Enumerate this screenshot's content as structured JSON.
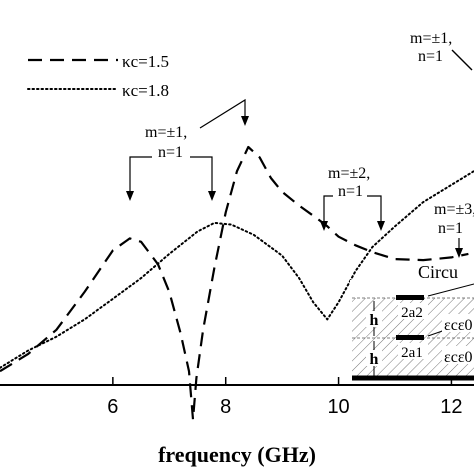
{
  "chart_data": {
    "type": "line",
    "xlabel": "frequency (GHz)",
    "ylabel": "",
    "xlim": [
      4.0,
      12.4
    ],
    "ylim": [
      0,
      1
    ],
    "x_ticks": [
      {
        "value": 6,
        "label": "6"
      },
      {
        "value": 8,
        "label": "8"
      },
      {
        "value": 10,
        "label": "10"
      },
      {
        "value": 12,
        "label": "12"
      }
    ],
    "legend": {
      "placement": "top-left",
      "entries": [
        {
          "series": 0,
          "label": "κc=1.5"
        },
        {
          "series": 1,
          "label": "κc=1.8"
        }
      ]
    },
    "series": [
      {
        "name": "κc=1.5",
        "style": "dashed",
        "color": "#000000",
        "points": [
          [
            4.0,
            0.04
          ],
          [
            4.5,
            0.09
          ],
          [
            5.0,
            0.16
          ],
          [
            5.5,
            0.27
          ],
          [
            6.0,
            0.39
          ],
          [
            6.3,
            0.425
          ],
          [
            6.5,
            0.415
          ],
          [
            6.8,
            0.35
          ],
          [
            7.0,
            0.27
          ],
          [
            7.2,
            0.15
          ],
          [
            7.35,
            0.04
          ],
          [
            7.42,
            -0.1
          ],
          [
            7.48,
            0.02
          ],
          [
            7.6,
            0.16
          ],
          [
            7.8,
            0.34
          ],
          [
            8.0,
            0.5
          ],
          [
            8.2,
            0.62
          ],
          [
            8.4,
            0.69
          ],
          [
            8.6,
            0.66
          ],
          [
            8.8,
            0.6
          ],
          [
            9.0,
            0.56
          ],
          [
            9.3,
            0.52
          ],
          [
            9.6,
            0.485
          ],
          [
            9.8,
            0.46
          ],
          [
            10.0,
            0.43
          ],
          [
            10.3,
            0.405
          ],
          [
            10.6,
            0.385
          ],
          [
            11.0,
            0.365
          ],
          [
            11.5,
            0.362
          ],
          [
            12.0,
            0.37
          ],
          [
            12.3,
            0.38
          ]
        ]
      },
      {
        "name": "κc=1.8",
        "style": "dotted",
        "color": "#000000",
        "points": [
          [
            4.0,
            0.05
          ],
          [
            4.5,
            0.1
          ],
          [
            5.0,
            0.14
          ],
          [
            5.5,
            0.19
          ],
          [
            6.0,
            0.25
          ],
          [
            6.5,
            0.31
          ],
          [
            7.0,
            0.38
          ],
          [
            7.5,
            0.445
          ],
          [
            7.8,
            0.47
          ],
          [
            8.1,
            0.465
          ],
          [
            8.5,
            0.435
          ],
          [
            9.0,
            0.375
          ],
          [
            9.3,
            0.31
          ],
          [
            9.55,
            0.24
          ],
          [
            9.8,
            0.19
          ],
          [
            10.0,
            0.24
          ],
          [
            10.3,
            0.33
          ],
          [
            10.6,
            0.4
          ],
          [
            11.0,
            0.46
          ],
          [
            11.5,
            0.53
          ],
          [
            12.0,
            0.58
          ],
          [
            12.4,
            0.62
          ]
        ]
      }
    ],
    "annotations": {
      "mode_labels": [
        {
          "lines": [
            "m=±1,",
            "n=1"
          ]
        },
        {
          "lines": [
            "m=±2,",
            "n=1"
          ]
        },
        {
          "lines": [
            "m=±3,",
            "n=1"
          ]
        },
        {
          "lines": [
            "m=±1,",
            "n=1"
          ]
        }
      ],
      "circuit_label": "Circu",
      "inset_labels": [
        "h",
        "h",
        "2a2",
        "2a1",
        "εcε0",
        "εcε0"
      ]
    }
  }
}
